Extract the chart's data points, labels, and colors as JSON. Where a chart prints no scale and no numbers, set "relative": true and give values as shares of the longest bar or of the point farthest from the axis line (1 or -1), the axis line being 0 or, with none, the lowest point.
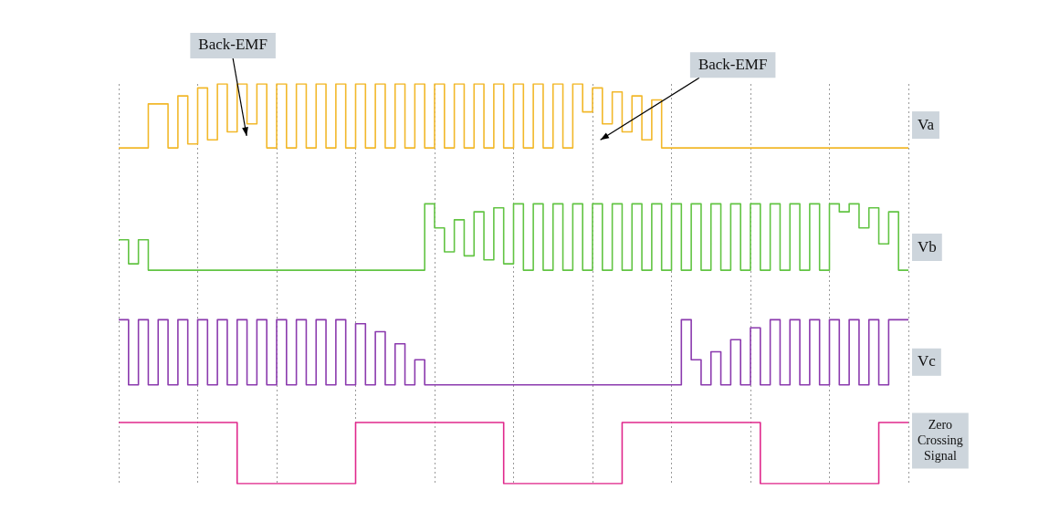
{
  "chart_data": {
    "type": "step",
    "relative": true,
    "categories": [
      null,
      null,
      null,
      null,
      null,
      null,
      null,
      null,
      null,
      null,
      null,
      null,
      null,
      null,
      null,
      null,
      null,
      null,
      null,
      null,
      null,
      null,
      null,
      null,
      null,
      null,
      null,
      null,
      null,
      null,
      null,
      null,
      null,
      null,
      null,
      null,
      null,
      null,
      null,
      null,
      null,
      null,
      null,
      null,
      null,
      null,
      null,
      null,
      null,
      null,
      null,
      null,
      null,
      null,
      null,
      null,
      null,
      null,
      null,
      null,
      null,
      null,
      null,
      null,
      null,
      null,
      null,
      null,
      null,
      null,
      null,
      null,
      null,
      null,
      null,
      null,
      null,
      null,
      null,
      null,
      null
    ],
    "tick_labels": false,
    "grid": "x",
    "legend": false,
    "series": [
      {
        "name": "Va",
        "color": "#f2b82a",
        "values": [
          0.84,
          0.84,
          0.84,
          0.95,
          0.95,
          0.84,
          0.97,
          0.85,
          0.99,
          0.86,
          1,
          0.88,
          1,
          0.9,
          1,
          0.84,
          1,
          0.84,
          1,
          0.84,
          1,
          0.84,
          1,
          0.84,
          1,
          0.84,
          1,
          0.84,
          1,
          0.84,
          1,
          0.84,
          1,
          0.84,
          1,
          0.84,
          1,
          0.84,
          1,
          0.84,
          1,
          0.84,
          1,
          0.84,
          1,
          0.84,
          1,
          0.93,
          0.99,
          0.9,
          0.98,
          0.88,
          0.97,
          0.86,
          0.96,
          0.84,
          0.84,
          0.84,
          0.84,
          0.84,
          0.84,
          0.84,
          0.84,
          0.84,
          0.84,
          0.84,
          0.84,
          0.84,
          0.84,
          0.84,
          0.84,
          0.84,
          0.84,
          0.84,
          0.84,
          0.84,
          0.84,
          0.84,
          0.84,
          0.84,
          0.84
        ]
      },
      {
        "name": "Vb",
        "color": "#62c443",
        "values": [
          0.61,
          0.55,
          0.61,
          0.534,
          0.534,
          0.534,
          0.534,
          0.534,
          0.534,
          0.534,
          0.534,
          0.534,
          0.534,
          0.534,
          0.534,
          0.534,
          0.534,
          0.534,
          0.534,
          0.534,
          0.534,
          0.534,
          0.534,
          0.534,
          0.534,
          0.534,
          0.534,
          0.534,
          0.534,
          0.534,
          0.534,
          0.7,
          0.64,
          0.58,
          0.66,
          0.57,
          0.68,
          0.56,
          0.69,
          0.55,
          0.7,
          0.534,
          0.7,
          0.534,
          0.7,
          0.534,
          0.7,
          0.534,
          0.7,
          0.534,
          0.7,
          0.534,
          0.7,
          0.534,
          0.7,
          0.534,
          0.7,
          0.534,
          0.7,
          0.534,
          0.7,
          0.534,
          0.7,
          0.534,
          0.7,
          0.534,
          0.7,
          0.534,
          0.7,
          0.534,
          0.7,
          0.534,
          0.7,
          0.68,
          0.7,
          0.64,
          0.69,
          0.6,
          0.68,
          0.534,
          0.534
        ]
      },
      {
        "name": "Vc",
        "color": "#8b3aae",
        "values": [
          0.41,
          0.247,
          0.41,
          0.247,
          0.41,
          0.247,
          0.41,
          0.247,
          0.41,
          0.247,
          0.41,
          0.247,
          0.41,
          0.247,
          0.41,
          0.247,
          0.41,
          0.247,
          0.41,
          0.247,
          0.41,
          0.247,
          0.41,
          0.247,
          0.4,
          0.247,
          0.38,
          0.247,
          0.35,
          0.247,
          0.31,
          0.247,
          0.247,
          0.247,
          0.247,
          0.247,
          0.247,
          0.247,
          0.247,
          0.247,
          0.247,
          0.247,
          0.247,
          0.247,
          0.247,
          0.247,
          0.247,
          0.247,
          0.247,
          0.247,
          0.247,
          0.247,
          0.247,
          0.247,
          0.247,
          0.247,
          0.247,
          0.41,
          0.31,
          0.247,
          0.33,
          0.247,
          0.36,
          0.247,
          0.39,
          0.247,
          0.41,
          0.247,
          0.41,
          0.247,
          0.41,
          0.247,
          0.41,
          0.247,
          0.41,
          0.247,
          0.41,
          0.247,
          0.41,
          0.41,
          0.41
        ]
      },
      {
        "name": "Zero Crossing Signal",
        "color": "#e0288c",
        "values": [
          0.153,
          0.153,
          0.153,
          0.153,
          0.153,
          0.153,
          0.153,
          0.153,
          0.153,
          0.153,
          0.153,
          0.153,
          0,
          0,
          0,
          0,
          0,
          0,
          0,
          0,
          0,
          0,
          0,
          0,
          0.153,
          0.153,
          0.153,
          0.153,
          0.153,
          0.153,
          0.153,
          0.153,
          0.153,
          0.153,
          0.153,
          0.153,
          0.153,
          0.153,
          0.153,
          0,
          0,
          0,
          0,
          0,
          0,
          0,
          0,
          0,
          0,
          0,
          0,
          0.153,
          0.153,
          0.153,
          0.153,
          0.153,
          0.153,
          0.153,
          0.153,
          0.153,
          0.153,
          0.153,
          0.153,
          0.153,
          0.153,
          0,
          0,
          0,
          0,
          0,
          0,
          0,
          0,
          0,
          0,
          0,
          0,
          0.153,
          0.153,
          0.153,
          0.153
        ]
      }
    ],
    "annotations": [
      "Back-EMF",
      "Back-EMF"
    ]
  }
}
